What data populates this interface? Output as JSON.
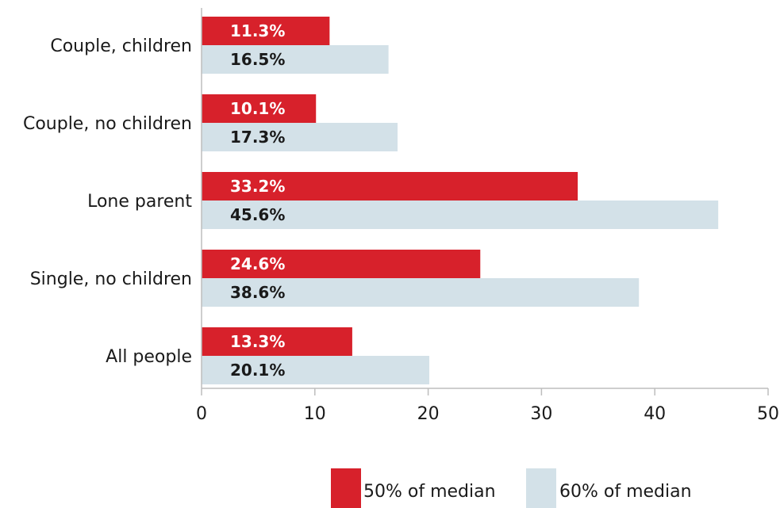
{
  "chart_data": {
    "type": "bar",
    "orientation": "horizontal",
    "categories": [
      "Couple, children",
      "Couple, no children",
      "Lone parent",
      "Single, no children",
      "All people"
    ],
    "series": [
      {
        "name": "50% of median",
        "values": [
          11.3,
          10.1,
          33.2,
          24.6,
          13.3
        ],
        "labels": [
          "11.3%",
          "10.1%",
          "33.2%",
          "24.6%",
          "13.3%"
        ],
        "color": "#d7212b",
        "label_color": "#ffffff"
      },
      {
        "name": "60% of median",
        "values": [
          16.5,
          17.3,
          45.6,
          38.6,
          20.1
        ],
        "labels": [
          "16.5%",
          "17.3%",
          "45.6%",
          "38.6%",
          "20.1%"
        ],
        "color": "#d3e1e8",
        "label_color": "#1a1a1a"
      }
    ],
    "xlim": [
      0,
      50
    ],
    "xticks": [
      0,
      10,
      20,
      30,
      40,
      50
    ],
    "xtick_labels": [
      "0",
      "10",
      "20",
      "30",
      "40",
      "50"
    ],
    "title": "",
    "xlabel": "",
    "ylabel": "",
    "grid": false,
    "legend_position": "bottom"
  }
}
